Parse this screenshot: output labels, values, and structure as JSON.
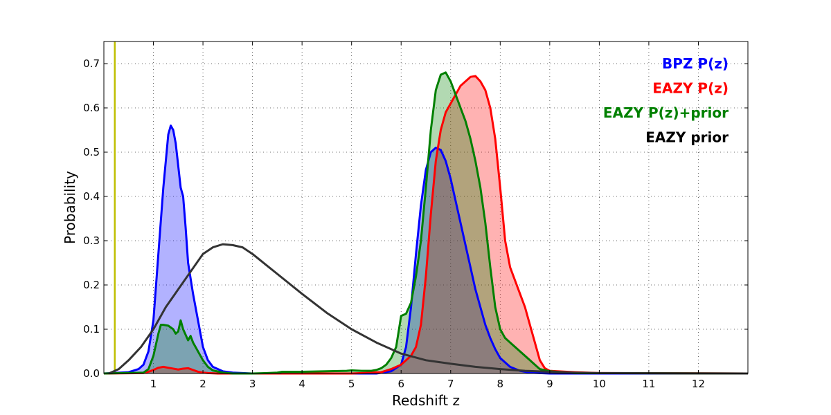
{
  "chart_data": {
    "type": "area",
    "title": "",
    "xlabel": "Redshift z",
    "ylabel": "Probability",
    "xlim": [
      0,
      13
    ],
    "ylim": [
      0,
      0.75
    ],
    "x_ticks": [
      1,
      2,
      3,
      4,
      5,
      6,
      7,
      8,
      9,
      10,
      11,
      12
    ],
    "y_ticks": [
      0.0,
      0.1,
      0.2,
      0.3,
      0.4,
      0.5,
      0.6,
      0.7
    ],
    "y_tick_labels": [
      "0.0",
      "0.1",
      "0.2",
      "0.3",
      "0.4",
      "0.5",
      "0.6",
      "0.7"
    ],
    "grid": true,
    "legend_position": "top-right",
    "vertical_line": {
      "x": 0.22,
      "color": "#bfbf00"
    },
    "series": [
      {
        "name": "BPZ P(z)",
        "color": "#0000ff",
        "fill": "#0000ff",
        "x": [
          0.0,
          0.5,
          0.7,
          0.8,
          0.9,
          1.0,
          1.1,
          1.2,
          1.3,
          1.35,
          1.4,
          1.45,
          1.5,
          1.55,
          1.6,
          1.65,
          1.7,
          1.8,
          1.9,
          2.0,
          2.1,
          2.2,
          2.4,
          2.6,
          2.8,
          3.0,
          5.5,
          5.8,
          6.0,
          6.1,
          6.2,
          6.3,
          6.4,
          6.5,
          6.6,
          6.7,
          6.8,
          6.9,
          7.0,
          7.1,
          7.2,
          7.3,
          7.4,
          7.5,
          7.6,
          7.7,
          7.8,
          7.9,
          8.0,
          8.2,
          8.4,
          8.6,
          8.8,
          9.0,
          13.0
        ],
        "values": [
          0.0,
          0.003,
          0.01,
          0.02,
          0.05,
          0.12,
          0.27,
          0.42,
          0.54,
          0.56,
          0.55,
          0.52,
          0.47,
          0.42,
          0.4,
          0.33,
          0.25,
          0.18,
          0.12,
          0.06,
          0.03,
          0.015,
          0.005,
          0.002,
          0.001,
          0.0,
          0.0,
          0.005,
          0.02,
          0.06,
          0.15,
          0.27,
          0.38,
          0.46,
          0.5,
          0.51,
          0.505,
          0.48,
          0.44,
          0.39,
          0.34,
          0.29,
          0.24,
          0.19,
          0.15,
          0.11,
          0.08,
          0.055,
          0.035,
          0.015,
          0.006,
          0.002,
          0.001,
          0.0,
          0.0
        ]
      },
      {
        "name": "EAZY P(z)",
        "color": "#ff0000",
        "fill": "#ff0000",
        "x": [
          0.0,
          0.8,
          0.9,
          1.0,
          1.1,
          1.2,
          1.3,
          1.4,
          1.5,
          1.6,
          1.7,
          1.8,
          1.9,
          2.0,
          2.1,
          2.3,
          2.5,
          5.0,
          5.6,
          5.8,
          6.0,
          6.1,
          6.2,
          6.3,
          6.4,
          6.5,
          6.6,
          6.7,
          6.8,
          6.9,
          7.0,
          7.1,
          7.2,
          7.3,
          7.4,
          7.5,
          7.6,
          7.7,
          7.8,
          7.9,
          8.0,
          8.1,
          8.2,
          8.3,
          8.4,
          8.5,
          8.6,
          8.7,
          8.8,
          8.9,
          9.0,
          9.5,
          10.0,
          13.0
        ],
        "values": [
          0.0,
          0.001,
          0.004,
          0.008,
          0.013,
          0.015,
          0.013,
          0.011,
          0.009,
          0.011,
          0.012,
          0.008,
          0.004,
          0.002,
          0.001,
          0.0,
          0.0,
          0.0,
          0.003,
          0.01,
          0.02,
          0.03,
          0.04,
          0.06,
          0.11,
          0.22,
          0.36,
          0.48,
          0.55,
          0.59,
          0.61,
          0.63,
          0.65,
          0.66,
          0.67,
          0.672,
          0.66,
          0.64,
          0.6,
          0.53,
          0.42,
          0.3,
          0.24,
          0.21,
          0.18,
          0.15,
          0.11,
          0.07,
          0.03,
          0.012,
          0.006,
          0.003,
          0.001,
          0.0
        ]
      },
      {
        "name": "EAZY P(z)+prior",
        "color": "#008000",
        "fill": "#008000",
        "x": [
          0.0,
          0.8,
          0.9,
          1.0,
          1.1,
          1.15,
          1.2,
          1.3,
          1.4,
          1.45,
          1.5,
          1.55,
          1.6,
          1.7,
          1.75,
          1.8,
          1.9,
          2.0,
          2.1,
          2.2,
          2.4,
          2.6,
          2.8,
          3.0,
          3.3,
          3.5,
          3.6,
          4.0,
          4.5,
          4.9,
          5.0,
          5.2,
          5.4,
          5.5,
          5.6,
          5.7,
          5.8,
          5.9,
          6.0,
          6.1,
          6.2,
          6.3,
          6.4,
          6.5,
          6.6,
          6.7,
          6.8,
          6.9,
          7.0,
          7.1,
          7.2,
          7.3,
          7.4,
          7.5,
          7.6,
          7.7,
          7.8,
          7.9,
          8.0,
          8.1,
          8.2,
          8.3,
          8.4,
          8.5,
          8.6,
          8.7,
          8.8,
          9.0,
          9.5,
          13.0
        ],
        "values": [
          0.0,
          0.002,
          0.01,
          0.04,
          0.09,
          0.11,
          0.11,
          0.108,
          0.1,
          0.09,
          0.095,
          0.12,
          0.1,
          0.075,
          0.085,
          0.07,
          0.05,
          0.03,
          0.015,
          0.007,
          0.002,
          0.0,
          0.0,
          0.0,
          0.001,
          0.002,
          0.004,
          0.004,
          0.005,
          0.006,
          0.007,
          0.006,
          0.006,
          0.008,
          0.012,
          0.02,
          0.035,
          0.06,
          0.13,
          0.135,
          0.16,
          0.22,
          0.3,
          0.42,
          0.55,
          0.64,
          0.675,
          0.68,
          0.66,
          0.63,
          0.6,
          0.57,
          0.53,
          0.48,
          0.42,
          0.34,
          0.24,
          0.15,
          0.1,
          0.08,
          0.07,
          0.06,
          0.05,
          0.04,
          0.03,
          0.02,
          0.01,
          0.005,
          0.001,
          0.0
        ]
      },
      {
        "name": "EAZY prior",
        "color": "#333333",
        "fill": "none",
        "x": [
          0.1,
          0.3,
          0.5,
          0.75,
          1.0,
          1.25,
          1.5,
          1.75,
          2.0,
          2.2,
          2.4,
          2.6,
          2.8,
          3.0,
          3.5,
          4.0,
          4.5,
          5.0,
          5.5,
          6.0,
          6.5,
          7.0,
          7.5,
          8.0,
          8.5,
          9.0,
          9.5,
          10.0,
          11.0,
          12.0,
          13.0
        ],
        "values": [
          0.0,
          0.01,
          0.03,
          0.06,
          0.1,
          0.15,
          0.19,
          0.23,
          0.27,
          0.285,
          0.292,
          0.29,
          0.285,
          0.27,
          0.225,
          0.18,
          0.137,
          0.1,
          0.07,
          0.045,
          0.03,
          0.022,
          0.015,
          0.01,
          0.006,
          0.004,
          0.002,
          0.001,
          0.0005,
          0.0002,
          0.0
        ]
      }
    ]
  }
}
